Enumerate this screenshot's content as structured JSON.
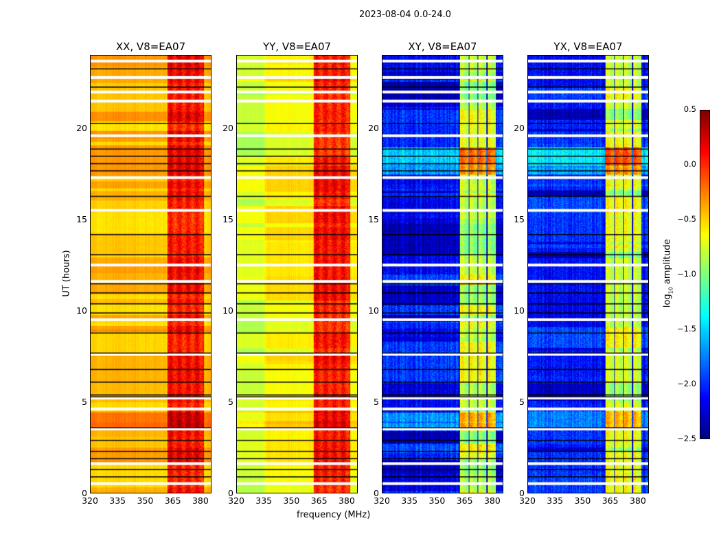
{
  "chart_data": {
    "type": "heatmap",
    "title": "2023-08-04 0.0-24.0",
    "xlabel": "frequency (MHz)",
    "ylabel": "UT (hours)",
    "xlim": [
      320,
      386
    ],
    "ylim": [
      0,
      24
    ],
    "xticks": [
      320,
      335,
      350,
      365,
      380
    ],
    "yticks": [
      0,
      5,
      10,
      15,
      20
    ],
    "colorbar": {
      "label": "log10 amplitude",
      "label_main": "log",
      "label_sub": "10",
      "label_rest": " amplitude",
      "range": [
        -2.5,
        0.5
      ],
      "ticks": [
        "0.5",
        "0.0",
        "−0.5",
        "−1.0",
        "−1.5",
        "−2.0",
        "−2.5"
      ],
      "colormap": "jet"
    },
    "panels": [
      {
        "title": "XX, V8=EA07",
        "base_level": -0.42,
        "band_level": 0.1,
        "band_mhz": [
          362,
          382
        ]
      },
      {
        "title": "YY, V8=EA07",
        "base_level": -0.62,
        "band_level": 0.05,
        "band_mhz": [
          362,
          382
        ]
      },
      {
        "title": "XY, V8=EA07",
        "base_level": -2.15,
        "band_level": -0.8,
        "band_mhz": [
          362,
          382
        ]
      },
      {
        "title": "YX, V8=EA07",
        "base_level": -2.15,
        "band_level": -0.8,
        "band_mhz": [
          362,
          382
        ]
      }
    ],
    "flagged_hours": [
      23.7,
      22.8,
      22.0,
      21.5,
      19.6,
      17.3,
      15.5,
      12.5,
      11.6,
      9.5,
      7.6,
      5.2,
      4.6,
      3.5,
      1.6,
      0.5
    ],
    "boundary_hours": [
      23.3,
      22.3,
      20.3,
      18.9,
      18.5,
      18.1,
      17.7,
      16.3,
      14.2,
      13.1,
      11.5,
      11.0,
      10.4,
      9.9,
      8.8,
      7.7,
      6.8,
      6.1,
      5.4,
      5.3,
      3.6,
      2.9,
      2.3,
      1.9,
      1.3,
      0.9
    ]
  }
}
